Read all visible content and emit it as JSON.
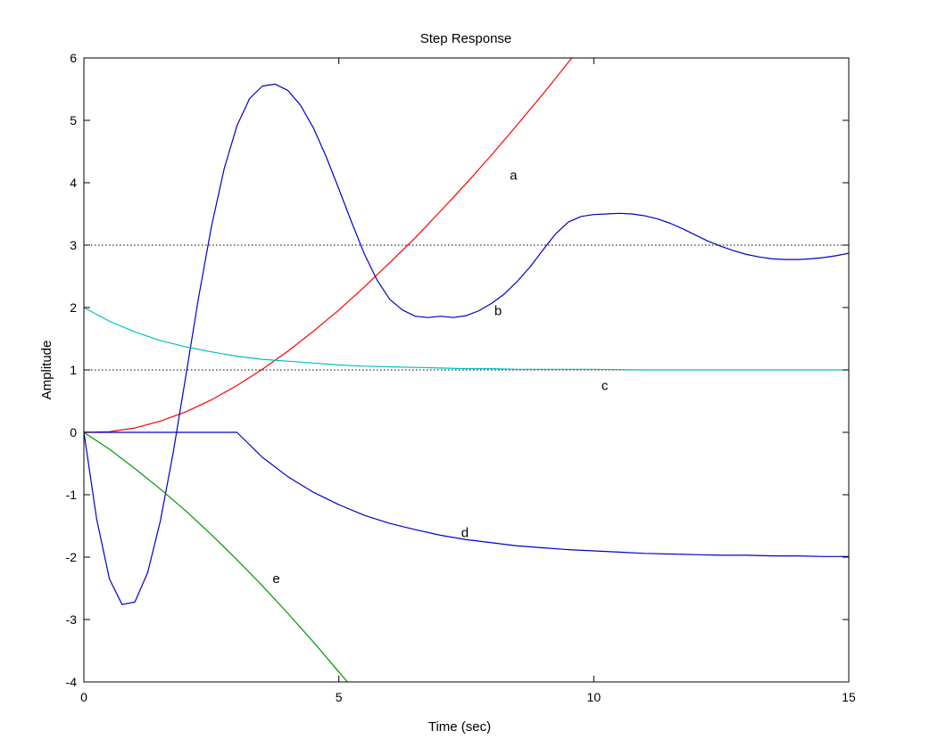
{
  "chart_data": {
    "type": "line",
    "title": "Step Response",
    "xlabel": "Time (sec)",
    "ylabel": "Amplitude",
    "xlim": [
      0,
      15
    ],
    "ylim": [
      -4,
      6
    ],
    "x_ticks": [
      0,
      5,
      10,
      15
    ],
    "y_ticks": [
      -4,
      -3,
      -2,
      -1,
      0,
      1,
      2,
      3,
      4,
      5,
      6
    ],
    "grid": false,
    "reference_lines": [
      1,
      3
    ],
    "series": [
      {
        "name": "a",
        "color": "#ff0000",
        "x": [
          0,
          0.5,
          1,
          1.5,
          2,
          2.5,
          3,
          3.5,
          4,
          4.5,
          5,
          5.5,
          6,
          6.5,
          7,
          7.5,
          8,
          8.5,
          9,
          9.5,
          10,
          10.3
        ],
        "y": [
          0,
          0.01,
          0.07,
          0.18,
          0.33,
          0.52,
          0.75,
          1.01,
          1.3,
          1.62,
          1.96,
          2.33,
          2.72,
          3.12,
          3.55,
          3.99,
          4.45,
          4.93,
          5.42,
          5.93,
          6.44,
          6.75
        ]
      },
      {
        "name": "b",
        "color": "#0000c8",
        "x": [
          0,
          0.25,
          0.5,
          0.75,
          1,
          1.25,
          1.5,
          1.75,
          2,
          2.25,
          2.5,
          2.75,
          3,
          3.25,
          3.5,
          3.75,
          4,
          4.25,
          4.5,
          4.75,
          5,
          5.25,
          5.5,
          5.75,
          6,
          6.25,
          6.5,
          6.75,
          7,
          7.25,
          7.5,
          7.75,
          8,
          8.25,
          8.5,
          8.75,
          9,
          9.25,
          9.5,
          9.75,
          10,
          10.25,
          10.5,
          10.75,
          11,
          11.25,
          11.5,
          11.75,
          12,
          12.25,
          12.5,
          12.75,
          13,
          13.25,
          13.5,
          13.75,
          14,
          14.25,
          14.5,
          14.75,
          15
        ],
        "y": [
          0,
          -1.39,
          -2.35,
          -2.76,
          -2.72,
          -2.25,
          -1.42,
          -0.33,
          0.91,
          2.16,
          3.29,
          4.22,
          4.91,
          5.35,
          5.55,
          5.58,
          5.48,
          5.24,
          4.88,
          4.42,
          3.9,
          3.37,
          2.86,
          2.44,
          2.13,
          1.96,
          1.86,
          1.84,
          1.86,
          1.84,
          1.87,
          1.95,
          2.07,
          2.22,
          2.42,
          2.65,
          2.92,
          3.18,
          3.37,
          3.46,
          3.49,
          3.5,
          3.51,
          3.5,
          3.47,
          3.42,
          3.35,
          3.26,
          3.16,
          3.06,
          2.98,
          2.91,
          2.85,
          2.81,
          2.78,
          2.77,
          2.77,
          2.78,
          2.8,
          2.83,
          2.87
        ]
      },
      {
        "name": "c",
        "color": "#00bfbf",
        "x": [
          0,
          0.5,
          1,
          1.5,
          2,
          2.5,
          3,
          3.5,
          4,
          4.5,
          5,
          5.5,
          6,
          6.5,
          7,
          7.5,
          8,
          8.5,
          9,
          9.5,
          10,
          11,
          12,
          13,
          14,
          15
        ],
        "y": [
          2,
          1.78,
          1.61,
          1.47,
          1.37,
          1.29,
          1.22,
          1.17,
          1.14,
          1.11,
          1.08,
          1.06,
          1.05,
          1.04,
          1.03,
          1.02,
          1.02,
          1.01,
          1.01,
          1.01,
          1.01,
          1,
          1,
          1,
          1,
          1
        ]
      },
      {
        "name": "d",
        "color": "#0000c8",
        "x": [
          0,
          1,
          2,
          3,
          3.5,
          4,
          4.5,
          5,
          5.5,
          6,
          6.5,
          7,
          7.5,
          8,
          8.5,
          9,
          9.5,
          10,
          10.5,
          11,
          11.5,
          12,
          12.5,
          13,
          13.5,
          14,
          14.5,
          15
        ],
        "y": [
          0,
          0,
          0,
          0,
          -0.4,
          -0.71,
          -0.96,
          -1.16,
          -1.33,
          -1.46,
          -1.56,
          -1.65,
          -1.72,
          -1.77,
          -1.82,
          -1.85,
          -1.88,
          -1.9,
          -1.92,
          -1.94,
          -1.95,
          -1.96,
          -1.97,
          -1.97,
          -1.98,
          -1.98,
          -1.99,
          -1.99
        ]
      },
      {
        "name": "e",
        "color": "#009900",
        "x": [
          0,
          0.5,
          1,
          1.5,
          2,
          2.5,
          3,
          3.5,
          4,
          4.5,
          5,
          5.5,
          5.6
        ],
        "y": [
          0,
          -0.27,
          -0.58,
          -0.91,
          -1.26,
          -1.64,
          -2.04,
          -2.46,
          -2.9,
          -3.36,
          -3.84,
          -4.32,
          -4.42
        ]
      }
    ],
    "annotations": [
      {
        "text": "a",
        "x": 8.35,
        "y": 4.12
      },
      {
        "text": "b",
        "x": 8.05,
        "y": 1.95
      },
      {
        "text": "c",
        "x": 10.15,
        "y": 0.75
      },
      {
        "text": "d",
        "x": 7.4,
        "y": -1.61
      },
      {
        "text": "e",
        "x": 3.7,
        "y": -2.34
      }
    ]
  }
}
